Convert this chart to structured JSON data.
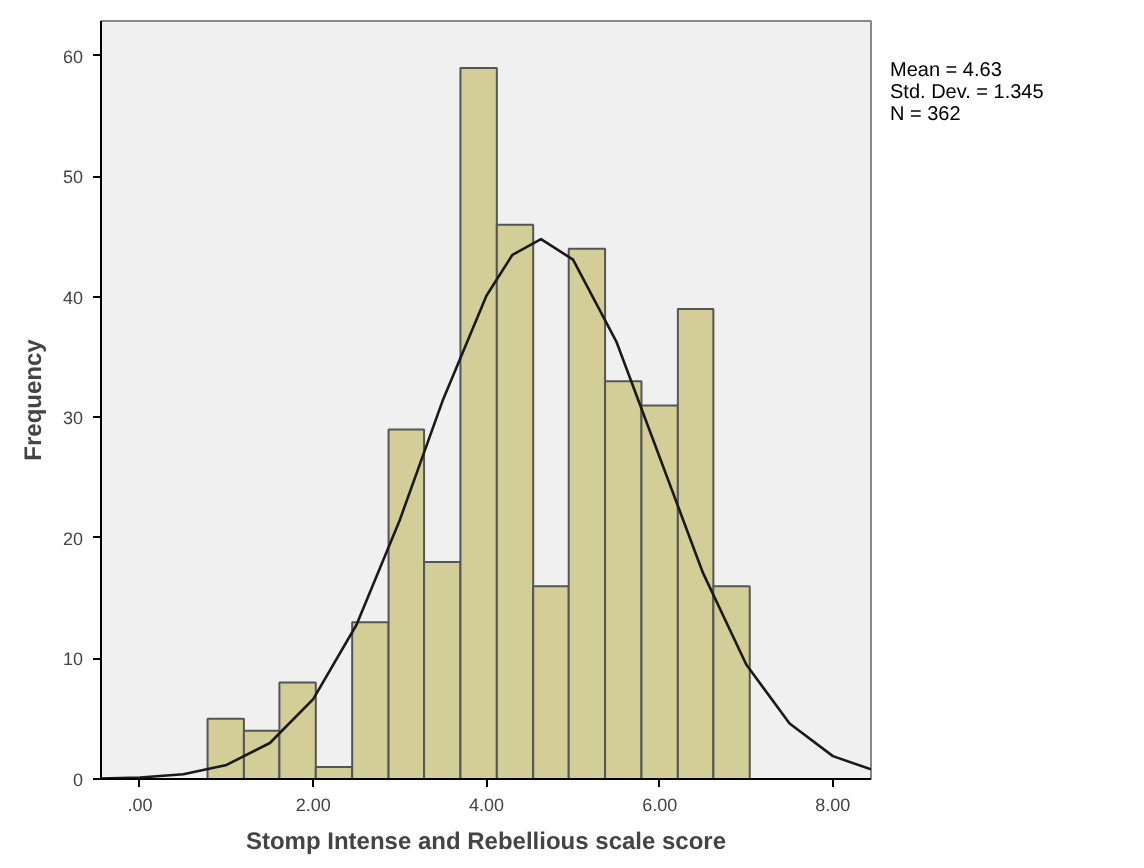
{
  "chart_data": {
    "type": "histogram",
    "xlabel": "Stomp Intense and Rebellious scale score",
    "ylabel": "Frequency",
    "bins": [
      0.78,
      1.2,
      1.61,
      2.03,
      2.45,
      2.87,
      3.28,
      3.7,
      4.12,
      4.54,
      4.95,
      5.37,
      5.79,
      6.21,
      6.62,
      7.04
    ],
    "values": [
      5,
      4,
      8,
      1,
      13,
      29,
      18,
      59,
      46,
      16,
      44,
      33,
      31,
      39,
      16
    ],
    "color": "#d3ce97",
    "series": [
      {
        "type": "line",
        "color": "#1a1a1a",
        "x": [
          -0.45,
          0,
          0.5,
          1,
          1.5,
          2,
          2.5,
          3,
          3.5,
          4,
          4.3,
          4.63,
          5,
          5.5,
          6,
          6.5,
          7,
          7.5,
          8,
          8.44
        ],
        "values": [
          0.04,
          0.12,
          0.4,
          1.17,
          2.99,
          6.63,
          12.8,
          21.5,
          31.5,
          40.1,
          43.5,
          44.8,
          43.1,
          36.3,
          26.7,
          17.1,
          9.5,
          4.6,
          1.9,
          0.8
        ]
      }
    ],
    "xlim": [
      -0.45,
      8.44
    ],
    "ylim": [
      0,
      62.9
    ],
    "xticks": [
      {
        "value": 0,
        "label": ".00"
      },
      {
        "value": 2,
        "label": "2.00"
      },
      {
        "value": 4,
        "label": "4.00"
      },
      {
        "value": 6,
        "label": "6.00"
      },
      {
        "value": 8,
        "label": "8.00"
      }
    ],
    "yticks": [
      0,
      10,
      20,
      30,
      40,
      50,
      60
    ],
    "grid": false,
    "annotations": [
      "Mean = 4.63",
      "Std. Dev. = 1.345",
      "N = 362"
    ]
  }
}
